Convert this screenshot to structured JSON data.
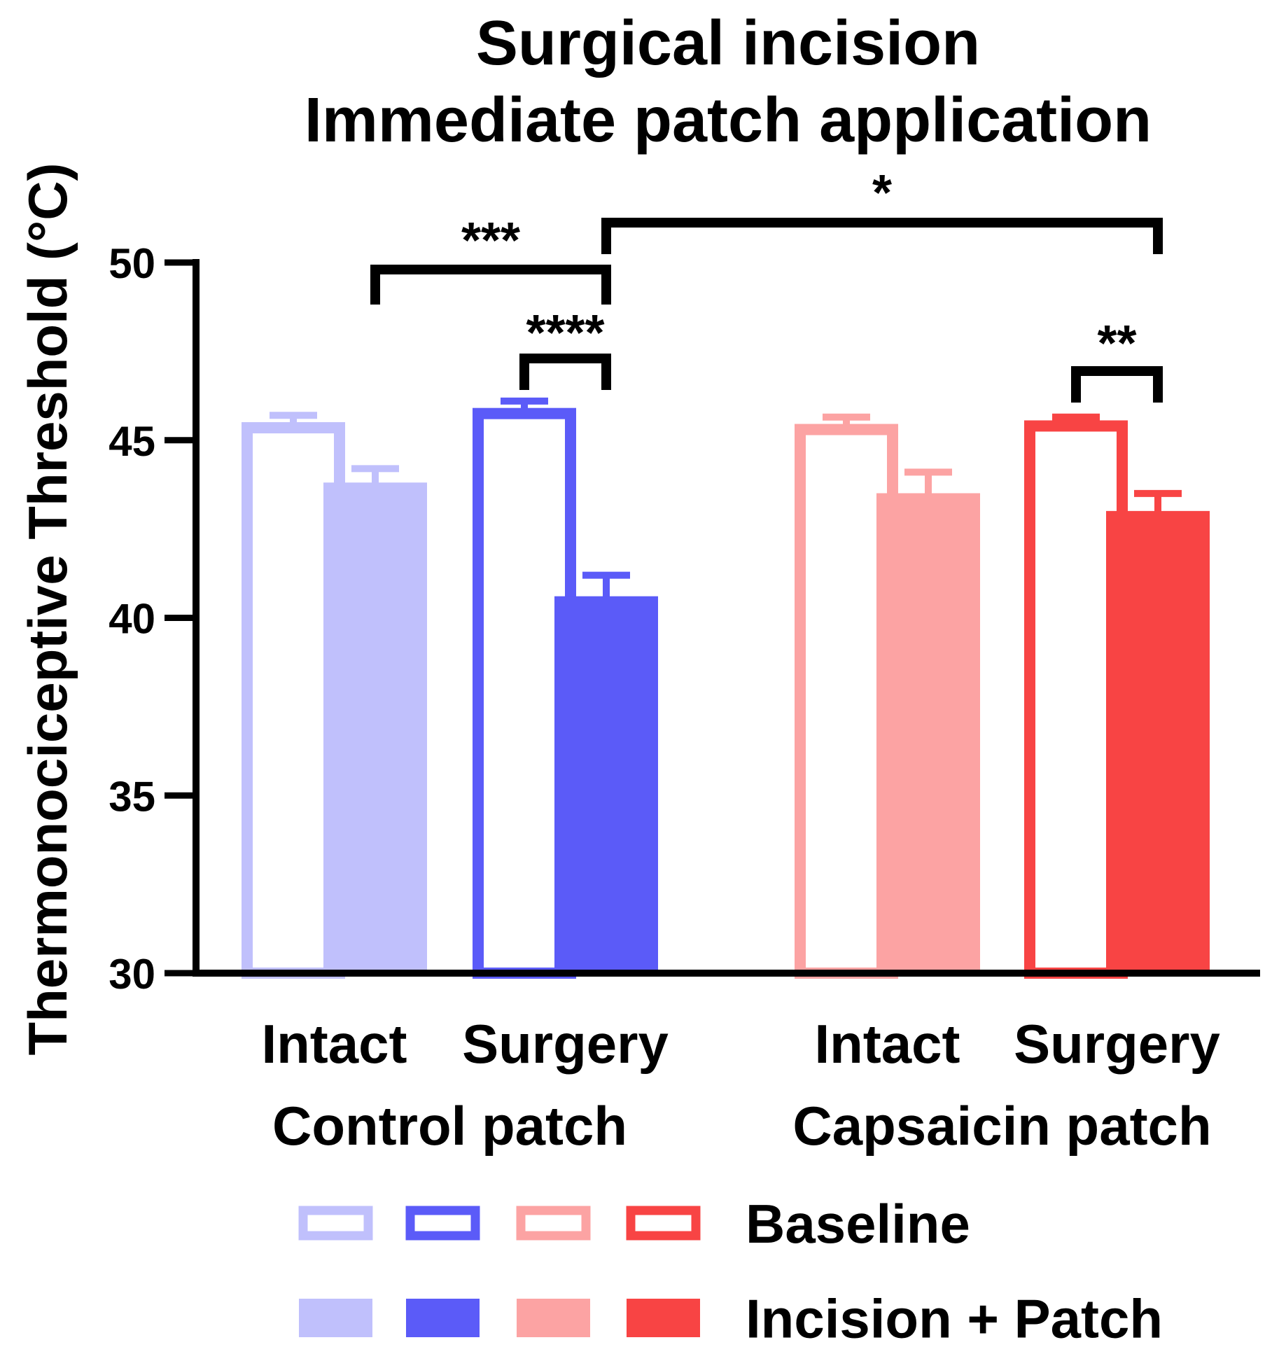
{
  "chart_data": {
    "type": "bar",
    "title": [
      "Surgical incision",
      "Immediate patch application"
    ],
    "ylabel": "Thermonociceptive Threshold (°C)",
    "ylim": [
      30,
      50
    ],
    "yticks": [
      {
        "value": 30,
        "label": "30"
      },
      {
        "value": 35,
        "label": "35"
      },
      {
        "value": 40,
        "label": "40"
      },
      {
        "value": 45,
        "label": "45"
      },
      {
        "value": 50,
        "label": "50"
      }
    ],
    "groups": [
      {
        "label": "Control patch",
        "categories": [
          "Intact",
          "Surgery"
        ]
      },
      {
        "label": "Capsaicin patch",
        "categories": [
          "Intact",
          "Surgery"
        ]
      }
    ],
    "colors": {
      "control_intact": "#c0c0fc",
      "control_surgery": "#5b5bf8",
      "capsaicin_intact": "#fca3a3",
      "capsaicin_surgery": "#f84444"
    },
    "bars": [
      {
        "group": 0,
        "category": "Intact",
        "series": "Baseline",
        "value": 45.35,
        "error": 0.35,
        "color": "#c0c0fc"
      },
      {
        "group": 0,
        "category": "Intact",
        "series": "Incision + Patch",
        "value": 43.65,
        "error": 0.55,
        "color": "#c0c0fc"
      },
      {
        "group": 0,
        "category": "Surgery",
        "series": "Baseline",
        "value": 45.75,
        "error": 0.35,
        "color": "#5b5bf8"
      },
      {
        "group": 0,
        "category": "Surgery",
        "series": "Incision + Patch",
        "value": 40.45,
        "error": 0.75,
        "color": "#5b5bf8"
      },
      {
        "group": 1,
        "category": "Intact",
        "series": "Baseline",
        "value": 45.3,
        "error": 0.35,
        "color": "#fca3a3"
      },
      {
        "group": 1,
        "category": "Intact",
        "series": "Incision + Patch",
        "value": 43.35,
        "error": 0.75,
        "color": "#fca3a3"
      },
      {
        "group": 1,
        "category": "Surgery",
        "series": "Baseline",
        "value": 45.4,
        "error": 0.25,
        "color": "#f84444"
      },
      {
        "group": 1,
        "category": "Surgery",
        "series": "Incision + Patch",
        "value": 42.85,
        "error": 0.65,
        "color": "#f84444"
      }
    ],
    "significance": [
      {
        "from_bar": 1,
        "to_bar": 3,
        "label": "***"
      },
      {
        "from_bar": 2,
        "to_bar": 3,
        "label": "****"
      },
      {
        "from_bar": 3,
        "to_bar": 7,
        "label": "*"
      },
      {
        "from_bar": 6,
        "to_bar": 7,
        "label": "**"
      }
    ],
    "legend": {
      "entries": [
        {
          "label": "Baseline",
          "style": "outline"
        },
        {
          "label": "Incision + Patch",
          "style": "filled"
        }
      ],
      "placement": "bottom"
    }
  }
}
